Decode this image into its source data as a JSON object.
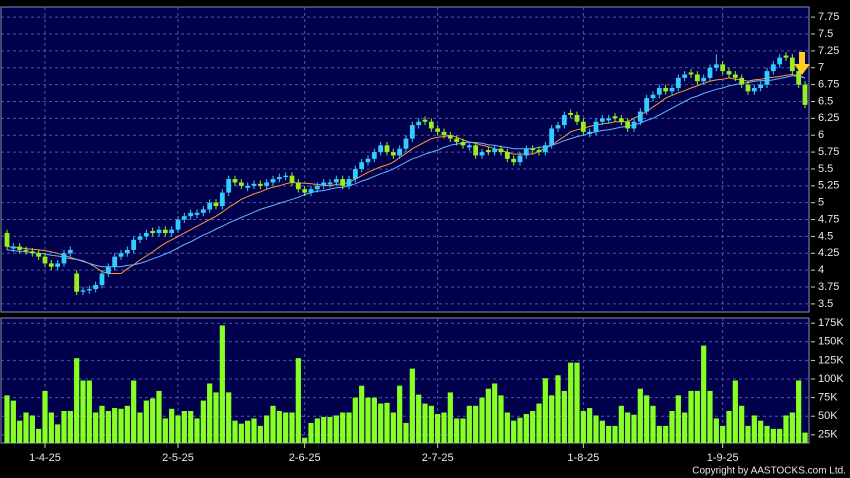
{
  "chart_data": {
    "type": "candlestick",
    "up_color": "#33ccff",
    "down_color": "#99ee22",
    "grid": true,
    "categories": [
      null,
      null,
      null,
      null,
      null,
      null,
      "1-4-25",
      null,
      null,
      null,
      null,
      null,
      null,
      null,
      null,
      null,
      null,
      null,
      null,
      null,
      null,
      null,
      null,
      null,
      null,
      null,
      null,
      "2-5-25",
      null,
      null,
      null,
      null,
      null,
      null,
      null,
      null,
      null,
      null,
      null,
      null,
      null,
      null,
      null,
      null,
      null,
      null,
      null,
      "2-6-25",
      null,
      null,
      null,
      null,
      null,
      null,
      null,
      null,
      null,
      null,
      null,
      null,
      null,
      null,
      null,
      null,
      null,
      null,
      null,
      null,
      "2-7-25",
      null,
      null,
      null,
      null,
      null,
      null,
      null,
      null,
      null,
      null,
      null,
      null,
      null,
      null,
      null,
      null,
      null,
      null,
      null,
      null,
      null,
      null,
      "1-8-25",
      null,
      null,
      null,
      null,
      null,
      null,
      null,
      null,
      null,
      null,
      null,
      null,
      null,
      null,
      null,
      null,
      null,
      null,
      null,
      null,
      null,
      "1-9-25",
      null,
      null,
      null,
      null,
      null,
      null,
      null,
      null,
      null,
      null,
      null,
      null,
      null
    ],
    "candles": [
      [
        4.55,
        4.6,
        4.3,
        4.35
      ],
      [
        4.32,
        4.4,
        4.27,
        4.35
      ],
      [
        4.35,
        4.4,
        4.25,
        4.3
      ],
      [
        4.3,
        4.35,
        4.23,
        4.28
      ],
      [
        4.28,
        4.33,
        4.2,
        4.25
      ],
      [
        4.25,
        4.3,
        4.15,
        4.2
      ],
      [
        4.2,
        4.25,
        4.05,
        4.1
      ],
      [
        4.1,
        4.15,
        4.0,
        4.05
      ],
      [
        4.05,
        4.15,
        4.0,
        4.1
      ],
      [
        4.1,
        4.3,
        4.05,
        4.25
      ],
      [
        4.25,
        4.35,
        4.2,
        4.3
      ],
      [
        3.95,
        4.0,
        3.63,
        3.68
      ],
      [
        3.68,
        3.75,
        3.63,
        3.7
      ],
      [
        3.7,
        3.77,
        3.65,
        3.72
      ],
      [
        3.72,
        3.83,
        3.67,
        3.78
      ],
      [
        3.78,
        4.0,
        3.73,
        3.95
      ],
      [
        3.95,
        4.1,
        3.9,
        4.05
      ],
      [
        4.05,
        4.25,
        4.0,
        4.2
      ],
      [
        4.2,
        4.3,
        4.15,
        4.25
      ],
      [
        4.25,
        4.35,
        4.2,
        4.3
      ],
      [
        4.3,
        4.5,
        4.25,
        4.45
      ],
      [
        4.45,
        4.55,
        4.4,
        4.5
      ],
      [
        4.5,
        4.6,
        4.45,
        4.55
      ],
      [
        4.58,
        4.63,
        4.5,
        4.55
      ],
      [
        4.55,
        4.65,
        4.5,
        4.6
      ],
      [
        4.6,
        4.65,
        4.5,
        4.55
      ],
      [
        4.55,
        4.65,
        4.5,
        4.6
      ],
      [
        4.6,
        4.8,
        4.55,
        4.75
      ],
      [
        4.75,
        4.85,
        4.7,
        4.8
      ],
      [
        4.8,
        4.9,
        4.75,
        4.85
      ],
      [
        4.82,
        4.9,
        4.77,
        4.85
      ],
      [
        4.85,
        4.95,
        4.8,
        4.9
      ],
      [
        4.9,
        5.05,
        4.85,
        5.0
      ],
      [
        5.0,
        5.05,
        4.9,
        4.95
      ],
      [
        4.95,
        5.2,
        4.9,
        5.15
      ],
      [
        5.15,
        5.4,
        5.1,
        5.35
      ],
      [
        5.35,
        5.4,
        5.25,
        5.3
      ],
      [
        5.3,
        5.35,
        5.2,
        5.25
      ],
      [
        5.22,
        5.3,
        5.17,
        5.25
      ],
      [
        5.25,
        5.33,
        5.2,
        5.28
      ],
      [
        5.28,
        5.33,
        5.2,
        5.25
      ],
      [
        5.25,
        5.35,
        5.2,
        5.3
      ],
      [
        5.3,
        5.4,
        5.25,
        5.35
      ],
      [
        5.35,
        5.43,
        5.3,
        5.38
      ],
      [
        5.38,
        5.45,
        5.33,
        5.4
      ],
      [
        5.4,
        5.45,
        5.25,
        5.3
      ],
      [
        5.3,
        5.35,
        5.15,
        5.2
      ],
      [
        5.2,
        5.25,
        5.1,
        5.15
      ],
      [
        5.15,
        5.25,
        5.1,
        5.2
      ],
      [
        5.2,
        5.3,
        5.15,
        5.25
      ],
      [
        5.25,
        5.35,
        5.2,
        5.3
      ],
      [
        5.27,
        5.35,
        5.22,
        5.3
      ],
      [
        5.3,
        5.4,
        5.25,
        5.35
      ],
      [
        5.35,
        5.4,
        5.2,
        5.25
      ],
      [
        5.25,
        5.4,
        5.2,
        5.35
      ],
      [
        5.35,
        5.55,
        5.3,
        5.5
      ],
      [
        5.5,
        5.65,
        5.45,
        5.6
      ],
      [
        5.6,
        5.7,
        5.55,
        5.65
      ],
      [
        5.65,
        5.8,
        5.6,
        5.75
      ],
      [
        5.75,
        5.9,
        5.7,
        5.85
      ],
      [
        5.85,
        5.9,
        5.7,
        5.75
      ],
      [
        5.75,
        5.8,
        5.65,
        5.7
      ],
      [
        5.7,
        5.85,
        5.65,
        5.8
      ],
      [
        5.8,
        6.0,
        5.75,
        5.95
      ],
      [
        5.95,
        6.2,
        5.9,
        6.15
      ],
      [
        6.15,
        6.25,
        6.1,
        6.2
      ],
      [
        6.23,
        6.28,
        6.15,
        6.2
      ],
      [
        6.2,
        6.25,
        6.05,
        6.1
      ],
      [
        6.1,
        6.15,
        6.0,
        6.05
      ],
      [
        6.05,
        6.1,
        5.95,
        6.0
      ],
      [
        6.0,
        6.05,
        5.9,
        5.95
      ],
      [
        5.95,
        6.0,
        5.85,
        5.9
      ],
      [
        5.9,
        5.95,
        5.8,
        5.85
      ],
      [
        5.82,
        5.9,
        5.77,
        5.85
      ],
      [
        5.85,
        5.9,
        5.65,
        5.7
      ],
      [
        5.7,
        5.8,
        5.65,
        5.75
      ],
      [
        5.78,
        5.83,
        5.7,
        5.75
      ],
      [
        5.75,
        5.85,
        5.7,
        5.8
      ],
      [
        5.8,
        5.85,
        5.7,
        5.75
      ],
      [
        5.75,
        5.8,
        5.6,
        5.65
      ],
      [
        5.65,
        5.7,
        5.55,
        5.6
      ],
      [
        5.6,
        5.75,
        5.55,
        5.7
      ],
      [
        5.7,
        5.85,
        5.65,
        5.8
      ],
      [
        5.8,
        5.85,
        5.73,
        5.78
      ],
      [
        5.78,
        5.83,
        5.7,
        5.75
      ],
      [
        5.75,
        5.9,
        5.7,
        5.85
      ],
      [
        5.85,
        6.15,
        5.8,
        6.1
      ],
      [
        6.1,
        6.2,
        6.05,
        6.15
      ],
      [
        6.15,
        6.35,
        6.1,
        6.3
      ],
      [
        6.33,
        6.38,
        6.25,
        6.3
      ],
      [
        6.3,
        6.35,
        6.15,
        6.2
      ],
      [
        6.2,
        6.25,
        6.0,
        6.05
      ],
      [
        6.02,
        6.1,
        5.97,
        6.05
      ],
      [
        6.05,
        6.25,
        6.0,
        6.2
      ],
      [
        6.2,
        6.3,
        6.15,
        6.25
      ],
      [
        6.22,
        6.3,
        6.17,
        6.25
      ],
      [
        6.28,
        6.33,
        6.2,
        6.25
      ],
      [
        6.25,
        6.3,
        6.15,
        6.2
      ],
      [
        6.2,
        6.25,
        6.05,
        6.1
      ],
      [
        6.1,
        6.25,
        6.05,
        6.2
      ],
      [
        6.2,
        6.4,
        6.15,
        6.35
      ],
      [
        6.35,
        6.6,
        6.3,
        6.55
      ],
      [
        6.55,
        6.65,
        6.5,
        6.6
      ],
      [
        6.6,
        6.75,
        6.55,
        6.7
      ],
      [
        6.7,
        6.75,
        6.6,
        6.65
      ],
      [
        6.65,
        6.75,
        6.6,
        6.7
      ],
      [
        6.7,
        6.9,
        6.65,
        6.85
      ],
      [
        6.85,
        6.95,
        6.8,
        6.9
      ],
      [
        6.93,
        6.98,
        6.85,
        6.9
      ],
      [
        6.9,
        6.95,
        6.75,
        6.8
      ],
      [
        6.8,
        6.9,
        6.75,
        6.85
      ],
      [
        6.85,
        7.05,
        6.8,
        7.0
      ],
      [
        7.0,
        7.2,
        6.95,
        7.05
      ],
      [
        7.05,
        7.1,
        6.9,
        6.95
      ],
      [
        6.95,
        7.0,
        6.85,
        6.9
      ],
      [
        6.9,
        6.95,
        6.8,
        6.85
      ],
      [
        6.85,
        6.9,
        6.7,
        6.75
      ],
      [
        6.75,
        6.8,
        6.6,
        6.65
      ],
      [
        6.65,
        6.75,
        6.6,
        6.7
      ],
      [
        6.7,
        6.8,
        6.65,
        6.75
      ],
      [
        6.75,
        7.0,
        6.7,
        6.95
      ],
      [
        6.95,
        7.1,
        6.9,
        7.05
      ],
      [
        7.05,
        7.2,
        7.0,
        7.15
      ],
      [
        7.18,
        7.23,
        7.1,
        7.15
      ],
      [
        7.15,
        7.2,
        6.9,
        6.95
      ],
      [
        6.95,
        7.0,
        6.7,
        6.75
      ],
      [
        6.75,
        6.8,
        6.4,
        6.45
      ]
    ],
    "series": [
      {
        "color": "#ff9933",
        "values": [
          4.35,
          4.34,
          4.33,
          4.32,
          4.31,
          4.3,
          4.29,
          4.27,
          4.25,
          4.22,
          4.19,
          4.16,
          4.13,
          4.1,
          4.04,
          3.98,
          3.95,
          3.95,
          3.95,
          4.02,
          4.08,
          4.15,
          4.21,
          4.27,
          4.34,
          4.4,
          4.45,
          4.5,
          4.55,
          4.6,
          4.65,
          4.7,
          4.75,
          4.8,
          4.86,
          4.93,
          4.99,
          5.05,
          5.09,
          5.13,
          5.16,
          5.2,
          5.23,
          5.25,
          5.28,
          5.3,
          5.29,
          5.29,
          5.28,
          5.27,
          5.26,
          5.25,
          5.27,
          5.28,
          5.3,
          5.35,
          5.4,
          5.45,
          5.49,
          5.53,
          5.56,
          5.6,
          5.67,
          5.73,
          5.8,
          5.85,
          5.9,
          5.95,
          5.97,
          5.98,
          6.0,
          5.97,
          5.93,
          5.9,
          5.88,
          5.85,
          5.83,
          5.8,
          5.77,
          5.75,
          5.72,
          5.72,
          5.72,
          5.72,
          5.76,
          5.81,
          5.85,
          5.92,
          5.98,
          6.05,
          6.08,
          6.1,
          6.13,
          6.15,
          6.17,
          6.18,
          6.2,
          6.2,
          6.2,
          6.25,
          6.3,
          6.35,
          6.42,
          6.48,
          6.55,
          6.59,
          6.63,
          6.66,
          6.7,
          6.73,
          6.77,
          6.8,
          6.82,
          6.83,
          6.85,
          6.83,
          6.82,
          6.8,
          6.82,
          6.83,
          6.85,
          6.86,
          6.87,
          6.89,
          6.9,
          6.88,
          6.85
        ]
      },
      {
        "color": "#66b3ff",
        "values": [
          4.3,
          4.29,
          4.28,
          4.27,
          4.26,
          4.25,
          4.24,
          4.22,
          4.21,
          4.19,
          4.17,
          4.16,
          4.14,
          4.1,
          4.07,
          4.05,
          4.05,
          4.05,
          4.05,
          4.07,
          4.08,
          4.1,
          4.13,
          4.17,
          4.2,
          4.24,
          4.28,
          4.33,
          4.38,
          4.42,
          4.47,
          4.52,
          4.56,
          4.61,
          4.65,
          4.7,
          4.74,
          4.78,
          4.82,
          4.86,
          4.9,
          4.93,
          4.96,
          4.99,
          5.02,
          5.05,
          5.08,
          5.12,
          5.15,
          5.17,
          5.18,
          5.2,
          5.22,
          5.23,
          5.25,
          5.28,
          5.32,
          5.35,
          5.39,
          5.43,
          5.46,
          5.5,
          5.55,
          5.6,
          5.65,
          5.68,
          5.72,
          5.75,
          5.78,
          5.82,
          5.85,
          5.87,
          5.88,
          5.9,
          5.89,
          5.88,
          5.86,
          5.85,
          5.83,
          5.82,
          5.8,
          5.8,
          5.8,
          5.8,
          5.82,
          5.83,
          5.85,
          5.88,
          5.92,
          5.95,
          5.98,
          6.0,
          6.03,
          6.05,
          6.07,
          6.08,
          6.1,
          6.12,
          6.13,
          6.15,
          6.18,
          6.22,
          6.25,
          6.3,
          6.35,
          6.4,
          6.45,
          6.5,
          6.55,
          6.58,
          6.62,
          6.65,
          6.68,
          6.7,
          6.73,
          6.75,
          6.77,
          6.78,
          6.8,
          6.81,
          6.81,
          6.82,
          6.84,
          6.86,
          6.88,
          6.87,
          6.85
        ]
      }
    ],
    "ylim": [
      3.38,
      7.9
    ],
    "yticks": [
      3.5,
      3.75,
      4,
      4.25,
      4.5,
      4.75,
      5,
      5.25,
      5.5,
      5.75,
      6,
      6.25,
      6.5,
      6.75,
      7,
      7.25,
      7.5,
      7.75
    ],
    "volume": {
      "color": "#88ff22",
      "values": [
        78000,
        71000,
        44000,
        55000,
        51000,
        33000,
        84000,
        55000,
        39000,
        57000,
        57000,
        128000,
        98000,
        98000,
        55000,
        64000,
        57000,
        61000,
        60000,
        64000,
        98000,
        55000,
        71000,
        74000,
        84000,
        47000,
        60000,
        51000,
        57000,
        57000,
        47000,
        71000,
        94000,
        82000,
        172000,
        82000,
        44000,
        40000,
        44000,
        47000,
        37000,
        51000,
        64000,
        57000,
        55000,
        55000,
        128000,
        21000,
        41000,
        47000,
        49000,
        49000,
        51000,
        55000,
        55000,
        75000,
        91000,
        75000,
        75000,
        67000,
        68000,
        55000,
        91000,
        41000,
        114000,
        79000,
        67000,
        64000,
        53000,
        55000,
        82000,
        47000,
        47000,
        64000,
        64000,
        75000,
        87000,
        94000,
        78000,
        55000,
        44000,
        48000,
        53000,
        57000,
        67000,
        101000,
        78000,
        105000,
        84000,
        122000,
        122000,
        57000,
        61000,
        51000,
        44000,
        37000,
        37000,
        64000,
        55000,
        52000,
        87000,
        78000,
        64000,
        37000,
        37000,
        57000,
        78000,
        55000,
        84000,
        84000,
        145000,
        84000,
        47000,
        37000,
        57000,
        98000,
        64000,
        37000,
        51000,
        44000,
        37000,
        33000,
        33000,
        51000,
        55000,
        98000,
        28000
      ],
      "ylim": [
        14000,
        182000
      ],
      "yticks": [
        {
          "value": 25000,
          "label": "25K"
        },
        {
          "value": 50000,
          "label": "50K"
        },
        {
          "value": 75000,
          "label": "75K"
        },
        {
          "value": 100000,
          "label": "100K"
        },
        {
          "value": 125000,
          "label": "125K"
        },
        {
          "value": 150000,
          "label": "150K"
        },
        {
          "value": 175000,
          "label": "175K"
        }
      ]
    },
    "annotations": [
      "Copyright by AASTOCKS.com Ltd."
    ]
  }
}
